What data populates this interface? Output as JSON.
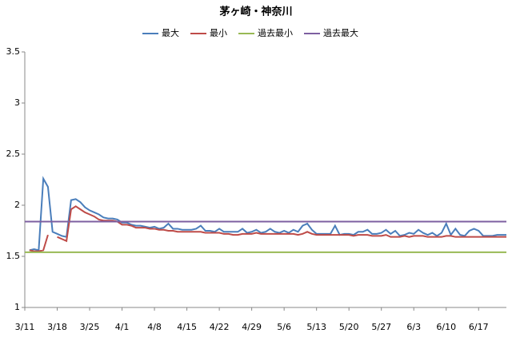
{
  "chart_data": {
    "type": "line",
    "title": "茅ヶ崎・神奈川",
    "categories": [
      "3/11",
      null,
      null,
      null,
      null,
      null,
      null,
      "3/18",
      null,
      null,
      null,
      null,
      null,
      null,
      "3/25",
      null,
      null,
      null,
      null,
      null,
      null,
      "4/1",
      null,
      null,
      null,
      null,
      null,
      null,
      "4/8",
      null,
      null,
      null,
      null,
      null,
      null,
      "4/15",
      null,
      null,
      null,
      null,
      null,
      null,
      "4/22",
      null,
      null,
      null,
      null,
      null,
      null,
      "4/29",
      null,
      null,
      null,
      null,
      null,
      null,
      "5/6",
      null,
      null,
      null,
      null,
      null,
      null,
      "5/13",
      null,
      null,
      null,
      null,
      null,
      null,
      "5/20",
      null,
      null,
      null,
      null,
      null,
      null,
      "5/27",
      null,
      null,
      null,
      null,
      null,
      null,
      "6/3",
      null,
      null,
      null,
      null,
      null,
      null,
      "6/10",
      null,
      null,
      null,
      null,
      null,
      null,
      "6/17",
      null,
      null,
      null,
      null,
      null,
      null
    ],
    "series": [
      {
        "name": "最大",
        "color": "#4a7ebb",
        "values": [
          null,
          1.56,
          1.57,
          1.56,
          2.26,
          2.18,
          1.74,
          1.72,
          1.7,
          1.69,
          2.05,
          2.06,
          2.03,
          1.98,
          1.95,
          1.93,
          1.91,
          1.88,
          1.87,
          1.87,
          1.86,
          1.83,
          1.83,
          1.81,
          1.8,
          1.8,
          1.79,
          1.78,
          1.79,
          1.77,
          1.78,
          1.82,
          1.77,
          1.77,
          1.76,
          1.76,
          1.76,
          1.77,
          1.8,
          1.75,
          1.75,
          1.74,
          1.77,
          1.74,
          1.74,
          1.74,
          1.74,
          1.77,
          1.73,
          1.74,
          1.76,
          1.73,
          1.74,
          1.77,
          1.74,
          1.73,
          1.75,
          1.73,
          1.76,
          1.74,
          1.8,
          1.82,
          1.76,
          1.72,
          1.72,
          1.72,
          1.72,
          1.8,
          1.71,
          1.72,
          1.72,
          1.71,
          1.74,
          1.74,
          1.76,
          1.72,
          1.72,
          1.73,
          1.76,
          1.72,
          1.75,
          1.7,
          1.71,
          1.73,
          1.72,
          1.76,
          1.73,
          1.71,
          1.73,
          1.7,
          1.73,
          1.82,
          1.71,
          1.77,
          1.71,
          1.7,
          1.75,
          1.77,
          1.75,
          1.7,
          1.7,
          1.7,
          1.71,
          1.71,
          1.71
        ]
      },
      {
        "name": "最小",
        "color": "#be4b48",
        "values": [
          null,
          1.56,
          1.55,
          1.55,
          1.56,
          1.71,
          null,
          1.69,
          1.67,
          1.65,
          1.96,
          1.99,
          1.96,
          1.93,
          1.91,
          1.89,
          1.86,
          1.85,
          1.85,
          1.85,
          1.84,
          1.81,
          1.81,
          1.8,
          1.78,
          1.78,
          1.78,
          1.77,
          1.77,
          1.76,
          1.76,
          1.75,
          1.75,
          1.74,
          1.74,
          1.74,
          1.74,
          1.74,
          1.74,
          1.73,
          1.73,
          1.73,
          1.73,
          1.72,
          1.72,
          1.71,
          1.71,
          1.72,
          1.72,
          1.72,
          1.73,
          1.72,
          1.72,
          1.72,
          1.72,
          1.72,
          1.72,
          1.72,
          1.72,
          1.71,
          1.72,
          1.74,
          1.72,
          1.71,
          1.71,
          1.71,
          1.71,
          1.71,
          1.71,
          1.71,
          1.71,
          1.7,
          1.71,
          1.71,
          1.71,
          1.7,
          1.7,
          1.7,
          1.71,
          1.69,
          1.69,
          1.69,
          1.7,
          1.69,
          1.7,
          1.7,
          1.7,
          1.69,
          1.69,
          1.69,
          1.69,
          1.7,
          1.7,
          1.69,
          1.69,
          1.69,
          1.69,
          1.69,
          1.69,
          1.69,
          1.69,
          1.69,
          1.69,
          1.69,
          1.69
        ]
      },
      {
        "name": "過去最小",
        "color": "#98b954",
        "values": [
          1.54,
          1.54,
          1.54,
          1.54,
          1.54,
          1.54,
          1.54,
          1.54,
          1.54,
          1.54,
          1.54,
          1.54,
          1.54,
          1.54,
          1.54,
          1.54,
          1.54,
          1.54,
          1.54,
          1.54,
          1.54,
          1.54,
          1.54,
          1.54,
          1.54,
          1.54,
          1.54,
          1.54,
          1.54,
          1.54,
          1.54,
          1.54,
          1.54,
          1.54,
          1.54,
          1.54,
          1.54,
          1.54,
          1.54,
          1.54,
          1.54,
          1.54,
          1.54,
          1.54,
          1.54,
          1.54,
          1.54,
          1.54,
          1.54,
          1.54,
          1.54,
          1.54,
          1.54,
          1.54,
          1.54,
          1.54,
          1.54,
          1.54,
          1.54,
          1.54,
          1.54,
          1.54,
          1.54,
          1.54,
          1.54,
          1.54,
          1.54,
          1.54,
          1.54,
          1.54,
          1.54,
          1.54,
          1.54,
          1.54,
          1.54,
          1.54,
          1.54,
          1.54,
          1.54,
          1.54,
          1.54,
          1.54,
          1.54,
          1.54,
          1.54,
          1.54,
          1.54,
          1.54,
          1.54,
          1.54,
          1.54,
          1.54,
          1.54,
          1.54,
          1.54,
          1.54,
          1.54,
          1.54,
          1.54,
          1.54,
          1.54,
          1.54,
          1.54,
          1.54,
          1.54
        ]
      },
      {
        "name": "過去最大",
        "color": "#7d5fa0",
        "values": [
          1.84,
          1.84,
          1.84,
          1.84,
          1.84,
          1.84,
          1.84,
          1.84,
          1.84,
          1.84,
          1.84,
          1.84,
          1.84,
          1.84,
          1.84,
          1.84,
          1.84,
          1.84,
          1.84,
          1.84,
          1.84,
          1.84,
          1.84,
          1.84,
          1.84,
          1.84,
          1.84,
          1.84,
          1.84,
          1.84,
          1.84,
          1.84,
          1.84,
          1.84,
          1.84,
          1.84,
          1.84,
          1.84,
          1.84,
          1.84,
          1.84,
          1.84,
          1.84,
          1.84,
          1.84,
          1.84,
          1.84,
          1.84,
          1.84,
          1.84,
          1.84,
          1.84,
          1.84,
          1.84,
          1.84,
          1.84,
          1.84,
          1.84,
          1.84,
          1.84,
          1.84,
          1.84,
          1.84,
          1.84,
          1.84,
          1.84,
          1.84,
          1.84,
          1.84,
          1.84,
          1.84,
          1.84,
          1.84,
          1.84,
          1.84,
          1.84,
          1.84,
          1.84,
          1.84,
          1.84,
          1.84,
          1.84,
          1.84,
          1.84,
          1.84,
          1.84,
          1.84,
          1.84,
          1.84,
          1.84,
          1.84,
          1.84,
          1.84,
          1.84,
          1.84,
          1.84,
          1.84,
          1.84,
          1.84,
          1.84,
          1.84,
          1.84,
          1.84,
          1.84,
          1.84
        ]
      }
    ],
    "ylim": [
      1,
      3.5
    ],
    "yticks": [
      1,
      1.5,
      2,
      2.5,
      3,
      3.5
    ],
    "grid": false,
    "legend": "top"
  }
}
